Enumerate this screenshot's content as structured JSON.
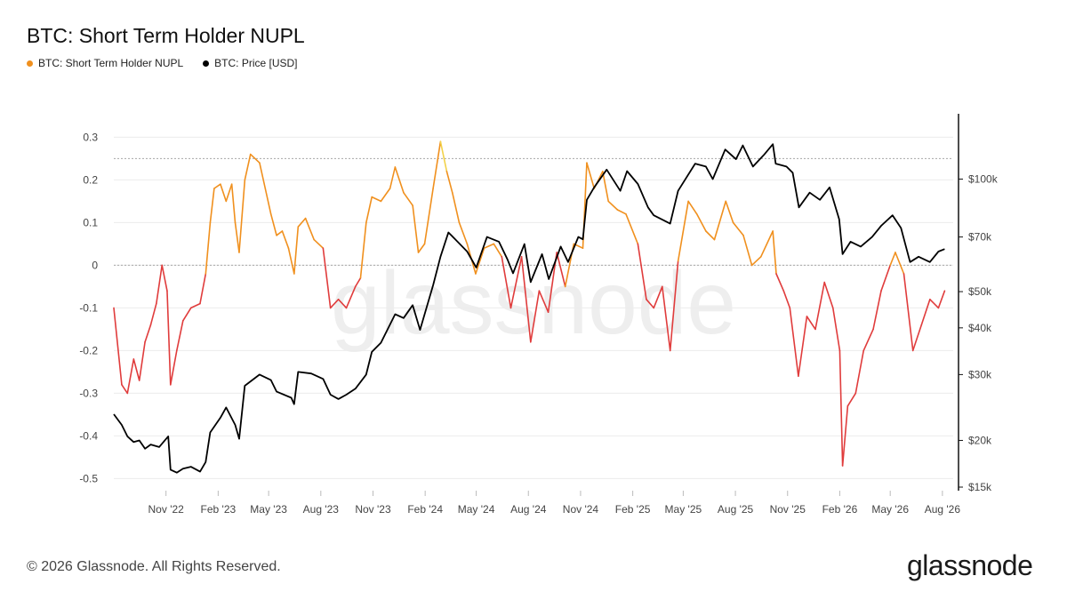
{
  "chart_data": {
    "type": "line",
    "title": "BTC: Short Term Holder NUPL",
    "legend_position": "top-left",
    "grid": true,
    "series": [
      {
        "name": "BTC: Short Term Holder NUPL",
        "axis": "left",
        "color": "#f0901e",
        "color_scale": {
          "negative": "#e03c3c",
          "positive": "#f0901e",
          "above_0_25": "#f2d24a"
        },
        "points": [
          [
            "2022-08-01",
            -0.1
          ],
          [
            "2022-08-15",
            -0.28
          ],
          [
            "2022-08-25",
            -0.3
          ],
          [
            "2022-09-05",
            -0.22
          ],
          [
            "2022-09-15",
            -0.27
          ],
          [
            "2022-09-25",
            -0.18
          ],
          [
            "2022-10-05",
            -0.14
          ],
          [
            "2022-10-15",
            -0.09
          ],
          [
            "2022-10-25",
            0.0
          ],
          [
            "2022-11-03",
            -0.06
          ],
          [
            "2022-11-09",
            -0.28
          ],
          [
            "2022-11-20",
            -0.2
          ],
          [
            "2022-12-01",
            -0.13
          ],
          [
            "2022-12-15",
            -0.1
          ],
          [
            "2022-12-31",
            -0.09
          ],
          [
            "2023-01-10",
            -0.02
          ],
          [
            "2023-01-18",
            0.1
          ],
          [
            "2023-01-25",
            0.18
          ],
          [
            "2023-02-05",
            0.19
          ],
          [
            "2023-02-15",
            0.15
          ],
          [
            "2023-02-25",
            0.19
          ],
          [
            "2023-03-03",
            0.1
          ],
          [
            "2023-03-10",
            0.03
          ],
          [
            "2023-03-20",
            0.2
          ],
          [
            "2023-03-30",
            0.26
          ],
          [
            "2023-04-15",
            0.24
          ],
          [
            "2023-04-25",
            0.18
          ],
          [
            "2023-05-05",
            0.12
          ],
          [
            "2023-05-15",
            0.07
          ],
          [
            "2023-05-25",
            0.08
          ],
          [
            "2023-06-05",
            0.04
          ],
          [
            "2023-06-15",
            -0.02
          ],
          [
            "2023-06-22",
            0.09
          ],
          [
            "2023-07-05",
            0.11
          ],
          [
            "2023-07-20",
            0.06
          ],
          [
            "2023-08-05",
            0.04
          ],
          [
            "2023-08-18",
            -0.1
          ],
          [
            "2023-09-01",
            -0.08
          ],
          [
            "2023-09-15",
            -0.1
          ],
          [
            "2023-10-01",
            -0.05
          ],
          [
            "2023-10-10",
            -0.03
          ],
          [
            "2023-10-20",
            0.1
          ],
          [
            "2023-10-30",
            0.16
          ],
          [
            "2023-11-15",
            0.15
          ],
          [
            "2023-12-01",
            0.18
          ],
          [
            "2023-12-10",
            0.23
          ],
          [
            "2023-12-25",
            0.17
          ],
          [
            "2024-01-10",
            0.14
          ],
          [
            "2024-01-20",
            0.03
          ],
          [
            "2024-01-31",
            0.05
          ],
          [
            "2024-02-15",
            0.18
          ],
          [
            "2024-02-28",
            0.29
          ],
          [
            "2024-03-10",
            0.22
          ],
          [
            "2024-03-20",
            0.17
          ],
          [
            "2024-04-01",
            0.1
          ],
          [
            "2024-04-15",
            0.05
          ],
          [
            "2024-04-30",
            -0.02
          ],
          [
            "2024-05-15",
            0.04
          ],
          [
            "2024-06-01",
            0.05
          ],
          [
            "2024-06-15",
            0.02
          ],
          [
            "2024-07-01",
            -0.1
          ],
          [
            "2024-07-20",
            0.02
          ],
          [
            "2024-08-05",
            -0.18
          ],
          [
            "2024-08-20",
            -0.06
          ],
          [
            "2024-09-05",
            -0.11
          ],
          [
            "2024-09-20",
            0.03
          ],
          [
            "2024-10-05",
            -0.05
          ],
          [
            "2024-10-20",
            0.05
          ],
          [
            "2024-11-05",
            0.04
          ],
          [
            "2024-11-12",
            0.24
          ],
          [
            "2024-11-25",
            0.18
          ],
          [
            "2024-12-10",
            0.22
          ],
          [
            "2024-12-20",
            0.15
          ],
          [
            "2025-01-05",
            0.13
          ],
          [
            "2025-01-20",
            0.12
          ],
          [
            "2025-02-10",
            0.05
          ],
          [
            "2025-02-25",
            -0.08
          ],
          [
            "2025-03-10",
            -0.1
          ],
          [
            "2025-03-25",
            -0.05
          ],
          [
            "2025-04-08",
            -0.2
          ],
          [
            "2025-04-22",
            0.01
          ],
          [
            "2025-05-10",
            0.15
          ],
          [
            "2025-05-25",
            0.12
          ],
          [
            "2025-06-10",
            0.08
          ],
          [
            "2025-06-25",
            0.06
          ],
          [
            "2025-07-15",
            0.15
          ],
          [
            "2025-07-28",
            0.1
          ],
          [
            "2025-08-15",
            0.07
          ],
          [
            "2025-08-30",
            0.0
          ],
          [
            "2025-09-15",
            0.02
          ],
          [
            "2025-10-06",
            0.08
          ],
          [
            "2025-10-12",
            -0.02
          ],
          [
            "2025-10-25",
            -0.06
          ],
          [
            "2025-11-05",
            -0.1
          ],
          [
            "2025-11-20",
            -0.26
          ],
          [
            "2025-12-05",
            -0.12
          ],
          [
            "2025-12-20",
            -0.15
          ],
          [
            "2026-01-05",
            -0.04
          ],
          [
            "2026-01-20",
            -0.1
          ],
          [
            "2026-02-01",
            -0.2
          ],
          [
            "2026-02-06",
            -0.47
          ],
          [
            "2026-02-15",
            -0.33
          ],
          [
            "2026-03-01",
            -0.3
          ],
          [
            "2026-03-15",
            -0.2
          ],
          [
            "2026-04-01",
            -0.15
          ],
          [
            "2026-04-15",
            -0.06
          ],
          [
            "2026-05-01",
            0.0
          ],
          [
            "2026-05-10",
            0.03
          ],
          [
            "2026-05-25",
            -0.02
          ],
          [
            "2026-06-10",
            -0.2
          ],
          [
            "2026-06-25",
            -0.14
          ],
          [
            "2026-07-10",
            -0.08
          ],
          [
            "2026-07-25",
            -0.1
          ],
          [
            "2026-08-05",
            -0.06
          ]
        ]
      },
      {
        "name": "BTC: Price [USD]",
        "axis": "right",
        "color": "#000000",
        "points": [
          [
            "2022-08-01",
            23500
          ],
          [
            "2022-08-15",
            22000
          ],
          [
            "2022-08-25",
            20500
          ],
          [
            "2022-09-05",
            19800
          ],
          [
            "2022-09-15",
            20000
          ],
          [
            "2022-09-25",
            19000
          ],
          [
            "2022-10-05",
            19500
          ],
          [
            "2022-10-20",
            19200
          ],
          [
            "2022-11-05",
            20500
          ],
          [
            "2022-11-09",
            16700
          ],
          [
            "2022-11-20",
            16400
          ],
          [
            "2022-12-01",
            16800
          ],
          [
            "2022-12-15",
            17000
          ],
          [
            "2022-12-31",
            16500
          ],
          [
            "2023-01-10",
            17500
          ],
          [
            "2023-01-18",
            21000
          ],
          [
            "2023-02-05",
            23000
          ],
          [
            "2023-02-15",
            24500
          ],
          [
            "2023-03-03",
            22000
          ],
          [
            "2023-03-10",
            20200
          ],
          [
            "2023-03-20",
            28000
          ],
          [
            "2023-04-15",
            30000
          ],
          [
            "2023-05-05",
            29000
          ],
          [
            "2023-05-15",
            27000
          ],
          [
            "2023-06-10",
            26000
          ],
          [
            "2023-06-15",
            25000
          ],
          [
            "2023-06-22",
            30500
          ],
          [
            "2023-07-15",
            30200
          ],
          [
            "2023-08-05",
            29200
          ],
          [
            "2023-08-18",
            26500
          ],
          [
            "2023-09-01",
            25800
          ],
          [
            "2023-09-15",
            26500
          ],
          [
            "2023-10-01",
            27500
          ],
          [
            "2023-10-20",
            30000
          ],
          [
            "2023-10-30",
            34500
          ],
          [
            "2023-11-15",
            36500
          ],
          [
            "2023-12-10",
            43500
          ],
          [
            "2023-12-25",
            42500
          ],
          [
            "2024-01-10",
            46000
          ],
          [
            "2024-01-23",
            39500
          ],
          [
            "2024-02-15",
            52000
          ],
          [
            "2024-02-28",
            62000
          ],
          [
            "2024-03-13",
            72000
          ],
          [
            "2024-03-25",
            69000
          ],
          [
            "2024-04-15",
            64000
          ],
          [
            "2024-05-01",
            58000
          ],
          [
            "2024-05-20",
            70000
          ],
          [
            "2024-06-10",
            68000
          ],
          [
            "2024-06-25",
            61000
          ],
          [
            "2024-07-05",
            56000
          ],
          [
            "2024-07-25",
            67000
          ],
          [
            "2024-08-05",
            53000
          ],
          [
            "2024-08-25",
            63000
          ],
          [
            "2024-09-06",
            54000
          ],
          [
            "2024-09-27",
            66000
          ],
          [
            "2024-10-10",
            60000
          ],
          [
            "2024-10-28",
            70000
          ],
          [
            "2024-11-05",
            69000
          ],
          [
            "2024-11-12",
            88000
          ],
          [
            "2024-11-25",
            95000
          ],
          [
            "2024-12-17",
            106000
          ],
          [
            "2025-01-10",
            93000
          ],
          [
            "2025-01-22",
            105000
          ],
          [
            "2025-02-10",
            97000
          ],
          [
            "2025-02-28",
            84000
          ],
          [
            "2025-03-10",
            80000
          ],
          [
            "2025-04-08",
            76000
          ],
          [
            "2025-04-22",
            93000
          ],
          [
            "2025-05-22",
            110000
          ],
          [
            "2025-06-10",
            108000
          ],
          [
            "2025-06-22",
            100000
          ],
          [
            "2025-07-14",
            120000
          ],
          [
            "2025-08-02",
            113000
          ],
          [
            "2025-08-14",
            123000
          ],
          [
            "2025-09-01",
            108000
          ],
          [
            "2025-09-20",
            116000
          ],
          [
            "2025-10-06",
            124000
          ],
          [
            "2025-10-11",
            110000
          ],
          [
            "2025-10-30",
            108000
          ],
          [
            "2025-11-10",
            104000
          ],
          [
            "2025-11-21",
            84000
          ],
          [
            "2025-12-10",
            92000
          ],
          [
            "2025-12-28",
            88000
          ],
          [
            "2026-01-14",
            95000
          ],
          [
            "2026-01-31",
            78000
          ],
          [
            "2026-02-06",
            63000
          ],
          [
            "2026-02-20",
            68000
          ],
          [
            "2026-03-10",
            66000
          ],
          [
            "2026-03-30",
            70000
          ],
          [
            "2026-04-15",
            75000
          ],
          [
            "2026-05-05",
            80000
          ],
          [
            "2026-05-20",
            74000
          ],
          [
            "2026-06-05",
            60000
          ],
          [
            "2026-06-20",
            62000
          ],
          [
            "2026-07-10",
            60000
          ],
          [
            "2026-07-25",
            64000
          ],
          [
            "2026-08-05",
            65000
          ]
        ]
      }
    ],
    "x_axis": {
      "type": "date",
      "range": [
        "2022-08-01",
        "2026-08-20"
      ],
      "ticks": [
        {
          "date": "2022-11-01",
          "label": "Nov '22"
        },
        {
          "date": "2023-02-01",
          "label": "Feb '23"
        },
        {
          "date": "2023-05-01",
          "label": "May '23"
        },
        {
          "date": "2023-08-01",
          "label": "Aug '23"
        },
        {
          "date": "2023-11-01",
          "label": "Nov '23"
        },
        {
          "date": "2024-02-01",
          "label": "Feb '24"
        },
        {
          "date": "2024-05-01",
          "label": "May '24"
        },
        {
          "date": "2024-08-01",
          "label": "Aug '24"
        },
        {
          "date": "2024-11-01",
          "label": "Nov '24"
        },
        {
          "date": "2025-02-01",
          "label": "Feb '25"
        },
        {
          "date": "2025-05-01",
          "label": "May '25"
        },
        {
          "date": "2025-08-01",
          "label": "Aug '25"
        },
        {
          "date": "2025-11-01",
          "label": "Nov '25"
        },
        {
          "date": "2026-02-01",
          "label": "Feb '26"
        },
        {
          "date": "2026-05-01",
          "label": "May '26"
        },
        {
          "date": "2026-08-01",
          "label": "Aug '26"
        }
      ]
    },
    "y_axis_left": {
      "range": [
        -0.52,
        0.33
      ],
      "ticks": [
        {
          "value": 0.3,
          "label": "0.3"
        },
        {
          "value": 0.2,
          "label": "0.2"
        },
        {
          "value": 0.1,
          "label": "0.1"
        },
        {
          "value": 0,
          "label": "0"
        },
        {
          "value": -0.1,
          "label": "-0.1"
        },
        {
          "value": -0.2,
          "label": "-0.2"
        },
        {
          "value": -0.3,
          "label": "-0.3"
        },
        {
          "value": -0.4,
          "label": "-0.4"
        },
        {
          "value": -0.5,
          "label": "-0.5"
        }
      ],
      "reference_lines": [
        0.25,
        0
      ]
    },
    "y_axis_right": {
      "scale": "log",
      "range": [
        15000,
        140000
      ],
      "ticks": [
        {
          "value": 100000,
          "label": "$100k"
        },
        {
          "value": 70000,
          "label": "$70k"
        },
        {
          "value": 50000,
          "label": "$50k"
        },
        {
          "value": 40000,
          "label": "$40k"
        },
        {
          "value": 30000,
          "label": "$30k"
        },
        {
          "value": 20000,
          "label": "$20k"
        },
        {
          "value": 15000,
          "label": "$15k"
        }
      ]
    },
    "watermark": "glassnode"
  },
  "legend": {
    "nupl_label": "BTC: Short Term Holder NUPL",
    "nupl_color": "#f0901e",
    "price_label": "BTC: Price [USD]",
    "price_color": "#000000"
  },
  "footer": {
    "copyright": "© 2026 Glassnode. All Rights Reserved.",
    "brand": "glassnode"
  }
}
